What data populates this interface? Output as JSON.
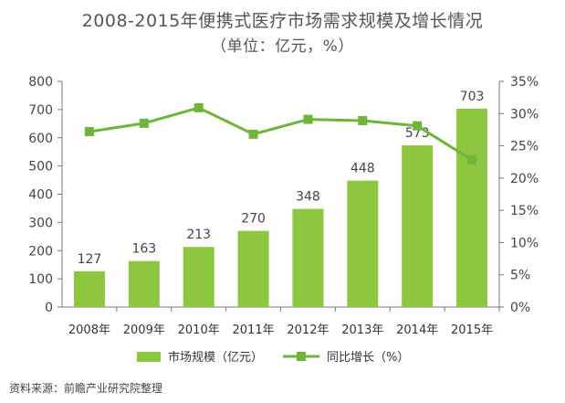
{
  "title": "2008-2015年便携式医疗市场需求规模及增长情况",
  "subtitle": "（单位：亿元，%）",
  "source": "资料来源：前瞻产业研究院整理",
  "colors": {
    "bar": "#8dc63f",
    "line": "#6fb53a"
  },
  "chart_data": {
    "type": "bar+line",
    "categories": [
      "2008年",
      "2009年",
      "2010年",
      "2011年",
      "2012年",
      "2013年",
      "2014年",
      "2015年"
    ],
    "series": [
      {
        "name": "市场规模（亿元）",
        "type": "bar",
        "axis": "left",
        "values": [
          127,
          163,
          213,
          270,
          348,
          448,
          573,
          703
        ]
      },
      {
        "name": "同比增长（%）",
        "type": "line",
        "axis": "right",
        "values": [
          27.2,
          28.5,
          30.9,
          26.8,
          29.1,
          28.9,
          28.1,
          22.8
        ]
      }
    ],
    "yleft": {
      "min": 0,
      "max": 800,
      "ticks": [
        "0",
        "100",
        "200",
        "300",
        "400",
        "500",
        "600",
        "700",
        "800"
      ]
    },
    "yright": {
      "min": 0,
      "max": 35,
      "ticks": [
        "0%",
        "5%",
        "10%",
        "15%",
        "20%",
        "25%",
        "30%",
        "35%"
      ]
    },
    "legend": "bottom",
    "grid": false
  }
}
